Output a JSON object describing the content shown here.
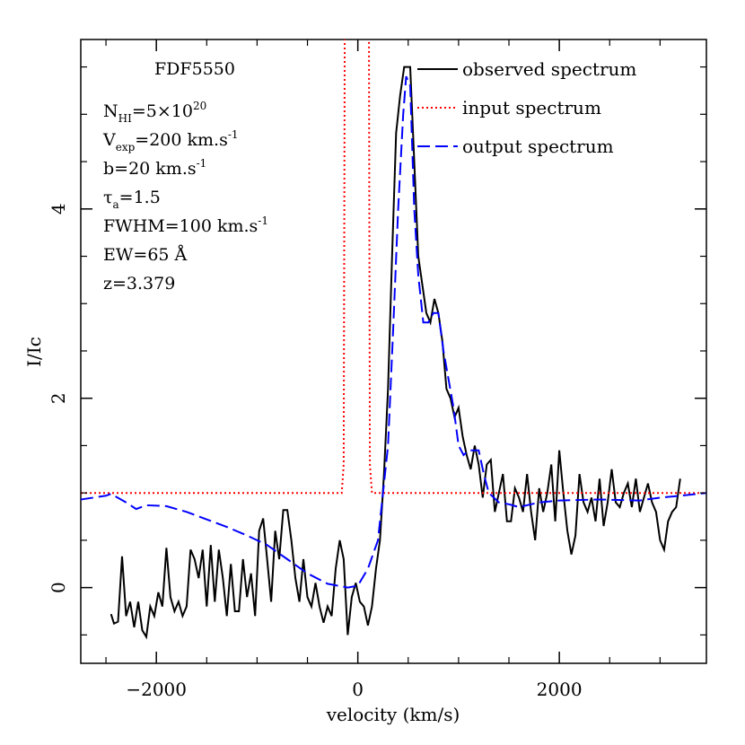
{
  "chart_data": {
    "type": "line",
    "xlabel": "velocity (km/s)",
    "ylabel": "I/Ic",
    "xlim": [
      -2750,
      3460
    ],
    "ylim": [
      -0.8,
      5.79
    ],
    "xticks": [
      {
        "value": -2000,
        "label": "−2000"
      },
      0,
      2000
    ],
    "yticks": [
      0,
      2,
      4
    ],
    "xminorticks": [
      -2500,
      -1500,
      -1000,
      -500,
      500,
      1000,
      1500,
      2500,
      3000
    ],
    "yminorticks": [
      -0.5,
      0.5,
      1,
      1.5,
      2.5,
      3,
      3.5,
      4.5,
      5,
      5.5
    ],
    "legend": "upper right",
    "annotations": [
      [
        {
          "text": "FDF5550"
        }
      ],
      [
        {
          "text": "N"
        },
        {
          "text": "HI",
          "shift": "sub"
        },
        {
          "text": "=5×10"
        },
        {
          "text": "20",
          "shift": "sup"
        }
      ],
      [
        {
          "text": "V"
        },
        {
          "text": "exp",
          "shift": "sub"
        },
        {
          "text": "=200 km.s"
        },
        {
          "text": "-1",
          "shift": "sup"
        }
      ],
      [
        {
          "text": "b=20 km.s"
        },
        {
          "text": "-1",
          "shift": "sup"
        }
      ],
      [
        {
          "text": "τ"
        },
        {
          "text": "a",
          "shift": "sub"
        },
        {
          "text": "=1.5"
        }
      ],
      [
        {
          "text": "FWHM=100 km.s"
        },
        {
          "text": "-1",
          "shift": "sup"
        }
      ],
      [
        {
          "text": "EW=65 Å"
        }
      ],
      [
        {
          "text": "z=3.379"
        }
      ]
    ],
    "series": [
      {
        "name": "observed spectrum",
        "color": "#000000",
        "dash": "solid",
        "x": [
          -2450,
          -2420,
          -2380,
          -2340,
          -2300,
          -2260,
          -2220,
          -2180,
          -2140,
          -2100,
          -2060,
          -2020,
          -1980,
          -1940,
          -1900,
          -1860,
          -1820,
          -1780,
          -1740,
          -1700,
          -1660,
          -1620,
          -1580,
          -1540,
          -1500,
          -1460,
          -1420,
          -1380,
          -1340,
          -1300,
          -1260,
          -1220,
          -1180,
          -1140,
          -1100,
          -1060,
          -1020,
          -980,
          -940,
          -900,
          -860,
          -820,
          -780,
          -740,
          -700,
          -660,
          -620,
          -580,
          -540,
          -500,
          -460,
          -420,
          -380,
          -340,
          -300,
          -260,
          -220,
          -180,
          -140,
          -100,
          -60,
          -20,
          20,
          60,
          100,
          140,
          180,
          220,
          260,
          300,
          340,
          380,
          420,
          460,
          520,
          560,
          600,
          640,
          680,
          720,
          760,
          800,
          840,
          880,
          920,
          960,
          1000,
          1040,
          1080,
          1120,
          1160,
          1200,
          1240,
          1280,
          1320,
          1360,
          1400,
          1440,
          1480,
          1520,
          1560,
          1600,
          1640,
          1680,
          1720,
          1760,
          1800,
          1840,
          1880,
          1920,
          1960,
          2000,
          2040,
          2080,
          2120,
          2160,
          2200,
          2240,
          2280,
          2320,
          2360,
          2400,
          2440,
          2480,
          2520,
          2560,
          2600,
          2640,
          2680,
          2720,
          2760,
          2800,
          2840,
          2880,
          2920,
          2960,
          3000,
          3040,
          3080,
          3120,
          3160,
          3200
        ],
        "values": [
          -0.28,
          -0.38,
          -0.36,
          0.33,
          -0.3,
          -0.15,
          -0.42,
          -0.15,
          -0.45,
          -0.52,
          -0.2,
          -0.3,
          -0.05,
          -0.2,
          0.42,
          -0.1,
          -0.25,
          -0.15,
          -0.3,
          -0.2,
          0.4,
          0.3,
          0.1,
          0.4,
          -0.2,
          0.45,
          -0.15,
          0.4,
          0.1,
          -0.3,
          0.25,
          -0.25,
          -0.25,
          0.3,
          -0.1,
          0.15,
          -0.3,
          0.6,
          0.73,
          0.3,
          -0.15,
          0.6,
          0.3,
          0.82,
          0.82,
          0.5,
          0.1,
          -0.15,
          0.3,
          -0.1,
          -0.2,
          0.05,
          -0.2,
          -0.37,
          -0.2,
          -0.3,
          0.2,
          0.5,
          0.3,
          -0.5,
          -0.1,
          0.05,
          -0.15,
          -0.2,
          -0.4,
          -0.2,
          0.2,
          0.5,
          1.2,
          2.1,
          3.5,
          4.8,
          5.2,
          5.5,
          5.5,
          4.5,
          3.5,
          3.2,
          2.9,
          2.8,
          3.05,
          2.9,
          2.6,
          2.1,
          2.0,
          1.8,
          1.9,
          1.6,
          1.4,
          1.25,
          1.5,
          1.3,
          0.95,
          1.3,
          1.35,
          0.8,
          1.0,
          1.2,
          0.7,
          0.7,
          1.05,
          0.95,
          0.8,
          1.2,
          0.8,
          0.5,
          1.05,
          0.8,
          1.0,
          1.3,
          0.7,
          1.45,
          1.0,
          0.6,
          0.35,
          0.55,
          1.2,
          0.9,
          0.8,
          0.95,
          0.7,
          1.15,
          0.65,
          0.9,
          1.25,
          0.9,
          0.85,
          1.0,
          1.1,
          0.85,
          1.15,
          0.8,
          0.95,
          1.1,
          0.9,
          0.8,
          0.5,
          0.4,
          0.7,
          0.8,
          0.85,
          1.15
        ]
      },
      {
        "name": "input spectrum",
        "color": "#ff0000",
        "dash": "dotted",
        "x": [
          -2750,
          -160,
          -140,
          -130,
          110,
          120,
          140,
          3460
        ],
        "values": [
          1,
          1,
          1.3,
          6,
          6,
          1.3,
          1,
          1
        ]
      },
      {
        "name": "output spectrum",
        "color": "#0000ff",
        "dash": "dashed",
        "x": [
          -2750,
          -2500,
          -2450,
          -2300,
          -2200,
          -2100,
          -1900,
          -1700,
          -1500,
          -1300,
          -1100,
          -900,
          -700,
          -500,
          -300,
          -100,
          0,
          100,
          200,
          300,
          350,
          400,
          450,
          480,
          520,
          560,
          600,
          650,
          700,
          750,
          800,
          850,
          900,
          950,
          1000,
          1050,
          1100,
          1200,
          1250,
          1300,
          1400,
          1500,
          1600,
          1800,
          2000,
          2400,
          2800,
          3000,
          3200,
          3460
        ],
        "values": [
          0.93,
          0.97,
          0.99,
          0.9,
          0.83,
          0.87,
          0.86,
          0.8,
          0.72,
          0.64,
          0.55,
          0.45,
          0.3,
          0.15,
          0.04,
          0.0,
          0.02,
          0.2,
          0.5,
          1.5,
          2.7,
          4.0,
          5.0,
          5.4,
          5.3,
          4.0,
          3.3,
          2.8,
          2.8,
          2.9,
          2.9,
          2.5,
          2.2,
          1.9,
          1.5,
          1.4,
          1.45,
          1.45,
          1.2,
          1.0,
          0.9,
          0.88,
          0.85,
          0.9,
          0.92,
          0.93,
          0.92,
          0.95,
          0.97,
          1.0
        ]
      }
    ]
  }
}
